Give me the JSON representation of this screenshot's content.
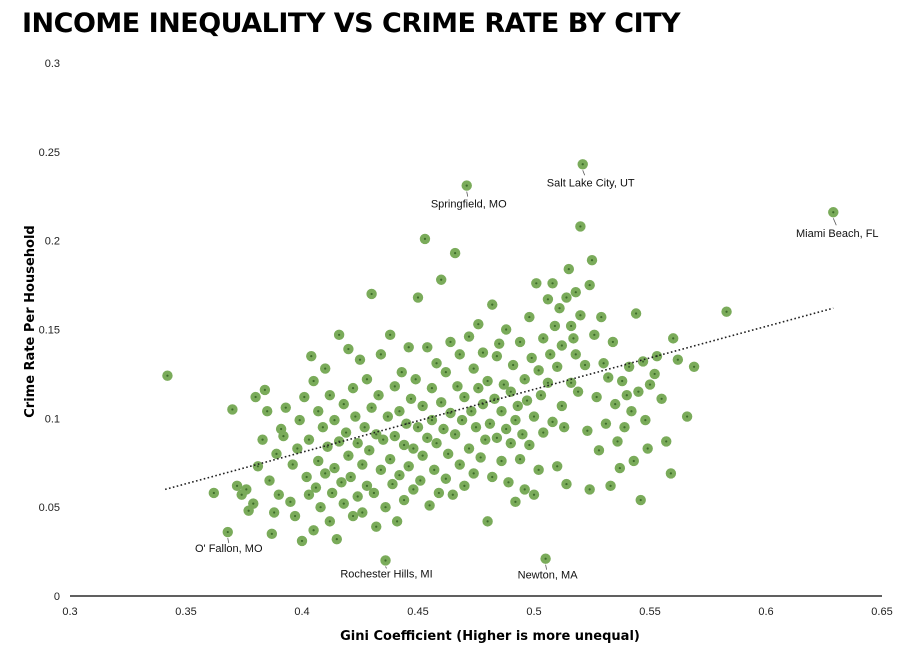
{
  "chart_data": {
    "type": "scatter",
    "title": "INCOME INEQUALITY VS CRIME RATE BY CITY",
    "xlabel": "Gini Coefficient  (Higher is more unequal)",
    "ylabel": "Crime Rate Per Household",
    "xlim": [
      0.3,
      0.65
    ],
    "ylim": [
      0,
      0.3
    ],
    "xticks": [
      "0.3",
      "0.35",
      "0.4",
      "0.45",
      "0.5",
      "0.55",
      "0.6",
      "0.65"
    ],
    "yticks": [
      "0",
      "0.05",
      "0.1",
      "0.15",
      "0.2",
      "0.25",
      "0.3"
    ],
    "grid": false,
    "legend": "none",
    "trendline": {
      "style": "dotted",
      "x": [
        0.341,
        0.629
      ],
      "y": [
        0.06,
        0.162
      ]
    },
    "marker_color": "#7aab5a",
    "annotations": [
      {
        "text": "Salt Lake City, UT",
        "x": 0.521,
        "y": 0.243
      },
      {
        "text": "Springfield, MO",
        "x": 0.471,
        "y": 0.231
      },
      {
        "text": "Miami Beach, FL",
        "x": 0.629,
        "y": 0.216
      },
      {
        "text": "O' Fallon, MO",
        "x": 0.368,
        "y": 0.036
      },
      {
        "text": "Rochester Hills, MI",
        "x": 0.436,
        "y": 0.02
      },
      {
        "text": "Newton, MA",
        "x": 0.505,
        "y": 0.021
      }
    ],
    "points": [
      [
        0.342,
        0.124
      ],
      [
        0.362,
        0.058
      ],
      [
        0.368,
        0.036
      ],
      [
        0.37,
        0.105
      ],
      [
        0.372,
        0.062
      ],
      [
        0.374,
        0.057
      ],
      [
        0.376,
        0.06
      ],
      [
        0.377,
        0.048
      ],
      [
        0.379,
        0.052
      ],
      [
        0.38,
        0.112
      ],
      [
        0.381,
        0.073
      ],
      [
        0.383,
        0.088
      ],
      [
        0.384,
        0.116
      ],
      [
        0.385,
        0.104
      ],
      [
        0.386,
        0.065
      ],
      [
        0.387,
        0.035
      ],
      [
        0.388,
        0.047
      ],
      [
        0.389,
        0.08
      ],
      [
        0.39,
        0.057
      ],
      [
        0.391,
        0.094
      ],
      [
        0.392,
        0.09
      ],
      [
        0.393,
        0.106
      ],
      [
        0.395,
        0.053
      ],
      [
        0.396,
        0.074
      ],
      [
        0.397,
        0.045
      ],
      [
        0.398,
        0.083
      ],
      [
        0.399,
        0.099
      ],
      [
        0.4,
        0.031
      ],
      [
        0.401,
        0.112
      ],
      [
        0.402,
        0.067
      ],
      [
        0.403,
        0.057
      ],
      [
        0.403,
        0.088
      ],
      [
        0.404,
        0.135
      ],
      [
        0.405,
        0.121
      ],
      [
        0.405,
        0.037
      ],
      [
        0.406,
        0.061
      ],
      [
        0.407,
        0.104
      ],
      [
        0.407,
        0.076
      ],
      [
        0.408,
        0.05
      ],
      [
        0.409,
        0.095
      ],
      [
        0.41,
        0.128
      ],
      [
        0.41,
        0.069
      ],
      [
        0.411,
        0.084
      ],
      [
        0.412,
        0.113
      ],
      [
        0.412,
        0.042
      ],
      [
        0.413,
        0.058
      ],
      [
        0.414,
        0.099
      ],
      [
        0.414,
        0.072
      ],
      [
        0.415,
        0.032
      ],
      [
        0.416,
        0.147
      ],
      [
        0.416,
        0.087
      ],
      [
        0.417,
        0.064
      ],
      [
        0.418,
        0.108
      ],
      [
        0.418,
        0.052
      ],
      [
        0.419,
        0.092
      ],
      [
        0.42,
        0.079
      ],
      [
        0.42,
        0.139
      ],
      [
        0.421,
        0.067
      ],
      [
        0.422,
        0.117
      ],
      [
        0.422,
        0.045
      ],
      [
        0.423,
        0.101
      ],
      [
        0.424,
        0.056
      ],
      [
        0.424,
        0.086
      ],
      [
        0.425,
        0.133
      ],
      [
        0.426,
        0.074
      ],
      [
        0.426,
        0.047
      ],
      [
        0.427,
        0.095
      ],
      [
        0.428,
        0.062
      ],
      [
        0.428,
        0.122
      ],
      [
        0.429,
        0.082
      ],
      [
        0.43,
        0.17
      ],
      [
        0.43,
        0.106
      ],
      [
        0.431,
        0.058
      ],
      [
        0.432,
        0.091
      ],
      [
        0.432,
        0.039
      ],
      [
        0.433,
        0.113
      ],
      [
        0.434,
        0.071
      ],
      [
        0.434,
        0.136
      ],
      [
        0.435,
        0.088
      ],
      [
        0.436,
        0.05
      ],
      [
        0.436,
        0.02
      ],
      [
        0.437,
        0.101
      ],
      [
        0.438,
        0.077
      ],
      [
        0.438,
        0.147
      ],
      [
        0.439,
        0.063
      ],
      [
        0.44,
        0.118
      ],
      [
        0.44,
        0.09
      ],
      [
        0.441,
        0.042
      ],
      [
        0.442,
        0.104
      ],
      [
        0.442,
        0.068
      ],
      [
        0.443,
        0.126
      ],
      [
        0.444,
        0.085
      ],
      [
        0.444,
        0.054
      ],
      [
        0.445,
        0.097
      ],
      [
        0.446,
        0.14
      ],
      [
        0.446,
        0.073
      ],
      [
        0.447,
        0.111
      ],
      [
        0.448,
        0.06
      ],
      [
        0.448,
        0.083
      ],
      [
        0.449,
        0.122
      ],
      [
        0.45,
        0.095
      ],
      [
        0.45,
        0.168
      ],
      [
        0.451,
        0.065
      ],
      [
        0.452,
        0.107
      ],
      [
        0.452,
        0.079
      ],
      [
        0.453,
        0.201
      ],
      [
        0.454,
        0.14
      ],
      [
        0.454,
        0.089
      ],
      [
        0.455,
        0.051
      ],
      [
        0.456,
        0.117
      ],
      [
        0.456,
        0.099
      ],
      [
        0.457,
        0.071
      ],
      [
        0.458,
        0.131
      ],
      [
        0.458,
        0.086
      ],
      [
        0.459,
        0.058
      ],
      [
        0.46,
        0.109
      ],
      [
        0.46,
        0.178
      ],
      [
        0.461,
        0.094
      ],
      [
        0.462,
        0.066
      ],
      [
        0.462,
        0.126
      ],
      [
        0.463,
        0.08
      ],
      [
        0.464,
        0.143
      ],
      [
        0.464,
        0.103
      ],
      [
        0.465,
        0.057
      ],
      [
        0.466,
        0.091
      ],
      [
        0.466,
        0.193
      ],
      [
        0.467,
        0.118
      ],
      [
        0.468,
        0.074
      ],
      [
        0.468,
        0.136
      ],
      [
        0.469,
        0.099
      ],
      [
        0.47,
        0.062
      ],
      [
        0.47,
        0.112
      ],
      [
        0.471,
        0.231
      ],
      [
        0.472,
        0.146
      ],
      [
        0.472,
        0.083
      ],
      [
        0.473,
        0.104
      ],
      [
        0.474,
        0.128
      ],
      [
        0.474,
        0.069
      ],
      [
        0.475,
        0.095
      ],
      [
        0.476,
        0.153
      ],
      [
        0.476,
        0.117
      ],
      [
        0.477,
        0.078
      ],
      [
        0.478,
        0.108
      ],
      [
        0.478,
        0.137
      ],
      [
        0.479,
        0.088
      ],
      [
        0.48,
        0.042
      ],
      [
        0.48,
        0.121
      ],
      [
        0.481,
        0.097
      ],
      [
        0.482,
        0.164
      ],
      [
        0.482,
        0.067
      ],
      [
        0.483,
        0.111
      ],
      [
        0.484,
        0.135
      ],
      [
        0.484,
        0.089
      ],
      [
        0.485,
        0.142
      ],
      [
        0.486,
        0.104
      ],
      [
        0.486,
        0.076
      ],
      [
        0.487,
        0.119
      ],
      [
        0.488,
        0.094
      ],
      [
        0.488,
        0.15
      ],
      [
        0.489,
        0.064
      ],
      [
        0.49,
        0.115
      ],
      [
        0.49,
        0.086
      ],
      [
        0.491,
        0.13
      ],
      [
        0.492,
        0.099
      ],
      [
        0.492,
        0.053
      ],
      [
        0.493,
        0.107
      ],
      [
        0.494,
        0.143
      ],
      [
        0.494,
        0.077
      ],
      [
        0.495,
        0.091
      ],
      [
        0.496,
        0.122
      ],
      [
        0.496,
        0.06
      ],
      [
        0.497,
        0.11
      ],
      [
        0.498,
        0.157
      ],
      [
        0.498,
        0.085
      ],
      [
        0.499,
        0.134
      ],
      [
        0.5,
        0.101
      ],
      [
        0.5,
        0.057
      ],
      [
        0.501,
        0.176
      ],
      [
        0.502,
        0.127
      ],
      [
        0.502,
        0.071
      ],
      [
        0.503,
        0.113
      ],
      [
        0.504,
        0.145
      ],
      [
        0.504,
        0.092
      ],
      [
        0.505,
        0.021
      ],
      [
        0.506,
        0.167
      ],
      [
        0.506,
        0.12
      ],
      [
        0.507,
        0.136
      ],
      [
        0.508,
        0.176
      ],
      [
        0.508,
        0.098
      ],
      [
        0.509,
        0.152
      ],
      [
        0.51,
        0.129
      ],
      [
        0.51,
        0.073
      ],
      [
        0.511,
        0.162
      ],
      [
        0.512,
        0.141
      ],
      [
        0.512,
        0.107
      ],
      [
        0.513,
        0.095
      ],
      [
        0.514,
        0.168
      ],
      [
        0.514,
        0.063
      ],
      [
        0.515,
        0.184
      ],
      [
        0.516,
        0.152
      ],
      [
        0.516,
        0.12
      ],
      [
        0.517,
        0.145
      ],
      [
        0.518,
        0.136
      ],
      [
        0.518,
        0.171
      ],
      [
        0.519,
        0.115
      ],
      [
        0.52,
        0.158
      ],
      [
        0.52,
        0.208
      ],
      [
        0.521,
        0.243
      ],
      [
        0.522,
        0.13
      ],
      [
        0.523,
        0.093
      ],
      [
        0.524,
        0.175
      ],
      [
        0.524,
        0.06
      ],
      [
        0.525,
        0.189
      ],
      [
        0.526,
        0.147
      ],
      [
        0.527,
        0.112
      ],
      [
        0.528,
        0.082
      ],
      [
        0.529,
        0.157
      ],
      [
        0.53,
        0.131
      ],
      [
        0.531,
        0.097
      ],
      [
        0.532,
        0.123
      ],
      [
        0.533,
        0.062
      ],
      [
        0.534,
        0.143
      ],
      [
        0.535,
        0.108
      ],
      [
        0.536,
        0.087
      ],
      [
        0.537,
        0.072
      ],
      [
        0.538,
        0.121
      ],
      [
        0.539,
        0.095
      ],
      [
        0.54,
        0.113
      ],
      [
        0.541,
        0.129
      ],
      [
        0.542,
        0.104
      ],
      [
        0.543,
        0.076
      ],
      [
        0.544,
        0.159
      ],
      [
        0.545,
        0.115
      ],
      [
        0.546,
        0.054
      ],
      [
        0.547,
        0.132
      ],
      [
        0.548,
        0.099
      ],
      [
        0.549,
        0.083
      ],
      [
        0.55,
        0.119
      ],
      [
        0.552,
        0.125
      ],
      [
        0.553,
        0.135
      ],
      [
        0.555,
        0.111
      ],
      [
        0.557,
        0.087
      ],
      [
        0.559,
        0.069
      ],
      [
        0.56,
        0.145
      ],
      [
        0.562,
        0.133
      ],
      [
        0.566,
        0.101
      ],
      [
        0.569,
        0.129
      ],
      [
        0.583,
        0.16
      ],
      [
        0.629,
        0.216
      ]
    ]
  }
}
